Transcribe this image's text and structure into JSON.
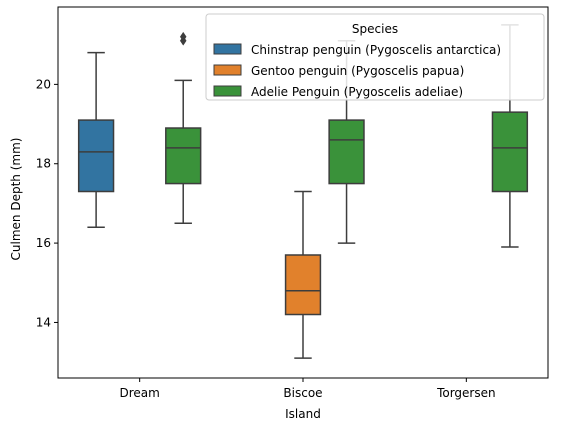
{
  "chart_data": {
    "type": "box",
    "xlabel": "Island",
    "ylabel": "Culmen Depth (mm)",
    "ylim": [
      12.6,
      21.95
    ],
    "yticks": [
      14,
      16,
      18,
      20
    ],
    "categories": [
      "Dream",
      "Biscoe",
      "Torgersen"
    ],
    "legend": {
      "title": "Species",
      "placement": "top-right"
    },
    "series": [
      {
        "name": "Chinstrap penguin (Pygoscelis antarctica)",
        "color": "#3274a1",
        "boxes": [
          {
            "category": "Dream",
            "whisker_low": 16.4,
            "q1": 17.3,
            "median": 18.3,
            "q3": 19.1,
            "whisker_high": 20.8,
            "outliers": []
          }
        ]
      },
      {
        "name": "Gentoo penguin (Pygoscelis papua)",
        "color": "#e1812c",
        "boxes": [
          {
            "category": "Biscoe",
            "whisker_low": 13.1,
            "q1": 14.2,
            "median": 14.8,
            "q3": 15.7,
            "whisker_high": 17.3,
            "outliers": []
          }
        ]
      },
      {
        "name": "Adelie Penguin (Pygoscelis adeliae)",
        "color": "#3a923a",
        "boxes": [
          {
            "category": "Dream",
            "whisker_low": 16.5,
            "q1": 17.5,
            "median": 18.4,
            "q3": 18.9,
            "whisker_high": 20.1,
            "outliers": [
              21.1,
              21.2
            ]
          },
          {
            "category": "Biscoe",
            "whisker_low": 16.0,
            "q1": 17.5,
            "median": 18.6,
            "q3": 19.1,
            "whisker_high": 21.1,
            "outliers": []
          },
          {
            "category": "Torgersen",
            "whisker_low": 15.9,
            "q1": 17.3,
            "median": 18.4,
            "q3": 19.3,
            "whisker_high": 21.5,
            "outliers": []
          }
        ]
      }
    ]
  }
}
